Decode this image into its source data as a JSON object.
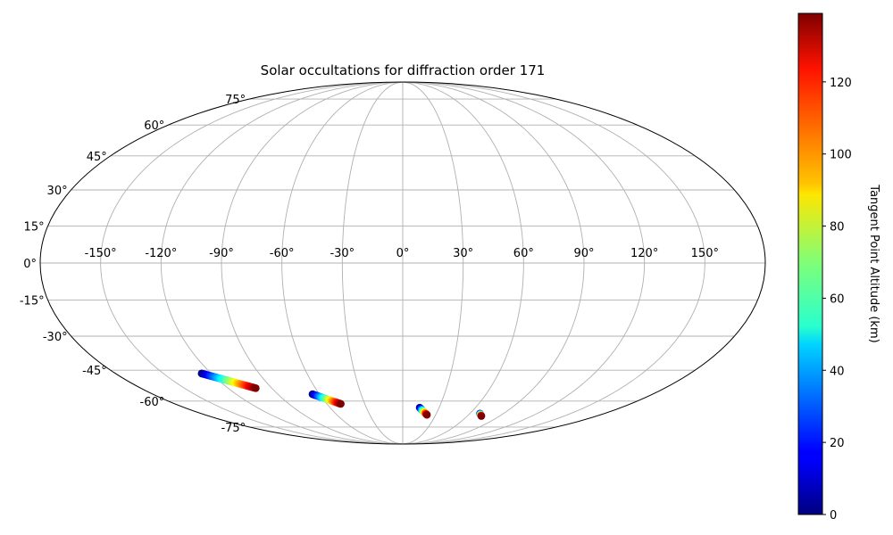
{
  "chart_data": {
    "type": "scatter",
    "projection": "mollweide",
    "title": "Solar occultations for diffraction order 171",
    "grid": true,
    "lon_ticks": [
      -150,
      -120,
      -90,
      -60,
      -30,
      0,
      30,
      60,
      90,
      120,
      150
    ],
    "lon_tick_labels": [
      "-150°",
      "-120°",
      "-90°",
      "-60°",
      "-30°",
      "0°",
      "30°",
      "60°",
      "90°",
      "120°",
      "150°"
    ],
    "lat_ticks": [
      -75,
      -60,
      -45,
      -30,
      -15,
      0,
      15,
      30,
      45,
      60,
      75
    ],
    "lat_tick_labels": [
      "-75°",
      "-60°",
      "-45°",
      "-30°",
      "-15°",
      "0°",
      "15°",
      "30°",
      "45°",
      "60°",
      "75°"
    ],
    "colorbar": {
      "label": "Tangent Point Altitude (km)",
      "colormap": "jet",
      "range": [
        0,
        139
      ],
      "ticks": [
        0,
        20,
        40,
        60,
        80,
        100,
        120
      ],
      "tick_labels": [
        "0",
        "20",
        "40",
        "60",
        "80",
        "100",
        "120"
      ]
    },
    "tracks": [
      {
        "lon_start": -126,
        "lat_start": -46.5,
        "lon_end": -101,
        "lat_end": -53.5,
        "alt_min": 0,
        "alt_max": 139
      },
      {
        "lon_start": -65,
        "lat_start": -56.5,
        "lon_end": -49,
        "lat_end": -61.5,
        "alt_min": 0,
        "alt_max": 139
      },
      {
        "lon_start": 14,
        "lat_start": -63.5,
        "lon_end": 22,
        "lat_end": -67.5,
        "alt_min": 0,
        "alt_max": 139
      },
      {
        "lon_start": 69,
        "lat_start": -66.8,
        "lon_end": 73,
        "lat_end": -68.2,
        "alt_min": 10,
        "alt_max": 139
      }
    ]
  }
}
